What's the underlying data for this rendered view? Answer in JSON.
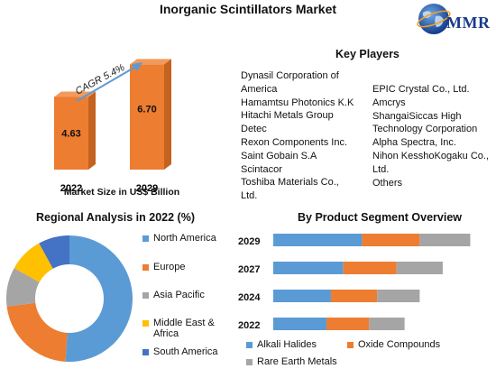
{
  "title": "Inorganic Scintillators Market",
  "logo": {
    "text": "MMR"
  },
  "colors": {
    "orange": "#ed7d31",
    "blue": "#5b9bd5",
    "gray": "#a5a5a5",
    "yellow": "#ffc000",
    "darkblue": "#4472c4"
  },
  "market_size": {
    "cagr_label": "CAGR 5.4%",
    "xlabel": "Market Size in US$ Billion"
  },
  "key_players": {
    "title": "Key Players",
    "col1": [
      "Dynasil Corporation of",
      "America",
      "Hamamtsu Photonics K.K",
      "Hitachi Metals Group",
      "Detec",
      "Rexon Components Inc.",
      "Saint Gobain S.A",
      "Scintacor",
      "Toshiba Materials Co.,",
      "Ltd."
    ],
    "col2": [
      "EPIC Crystal Co., Ltd.",
      "Amcrys",
      "ShangaiSiccas High",
      "Technology Corporation",
      "Alpha Spectra, Inc.",
      "Nihon KesshoKogaku Co.,",
      "Ltd.",
      "Others"
    ]
  },
  "regional": {
    "title": "Regional Analysis in 2022 (%)",
    "legend": [
      "North America",
      "Europe",
      "Asia Pacific",
      "Middle East & Africa",
      "South America"
    ]
  },
  "segment": {
    "title": "By Product Segment Overview",
    "legend": [
      "Alkali Halides",
      "Oxide Compounds",
      "Rare Earth Metals"
    ]
  },
  "chart_data": [
    {
      "type": "bar",
      "categories": [
        "2022",
        "2029"
      ],
      "values": [
        4.63,
        6.7
      ],
      "xlabel": "Market Size in US$ Billion",
      "annotations": [
        "CAGR 5.4%"
      ]
    },
    {
      "type": "pie",
      "title": "Regional Analysis in 2022 (%)",
      "categories": [
        "North America",
        "Europe",
        "Asia Pacific",
        "Middle East & Africa",
        "South America"
      ],
      "values": [
        51,
        22,
        10,
        9,
        8
      ],
      "colors": [
        "#5b9bd5",
        "#ed7d31",
        "#a5a5a5",
        "#ffc000",
        "#4472c4"
      ],
      "donut": true
    },
    {
      "type": "bar",
      "stacked": true,
      "orientation": "horizontal",
      "title": "By Product Segment Overview",
      "categories": [
        "2029",
        "2027",
        "2024",
        "2022"
      ],
      "series": [
        {
          "name": "Alkali Halides",
          "values": [
            100,
            79,
            65,
            60
          ],
          "color": "#5b9bd5"
        },
        {
          "name": "Oxide Compounds",
          "values": [
            65,
            60,
            52,
            48
          ],
          "color": "#ed7d31"
        },
        {
          "name": "Rare Earth Metals",
          "values": [
            57,
            52,
            48,
            40
          ],
          "color": "#a5a5a5"
        }
      ]
    }
  ]
}
